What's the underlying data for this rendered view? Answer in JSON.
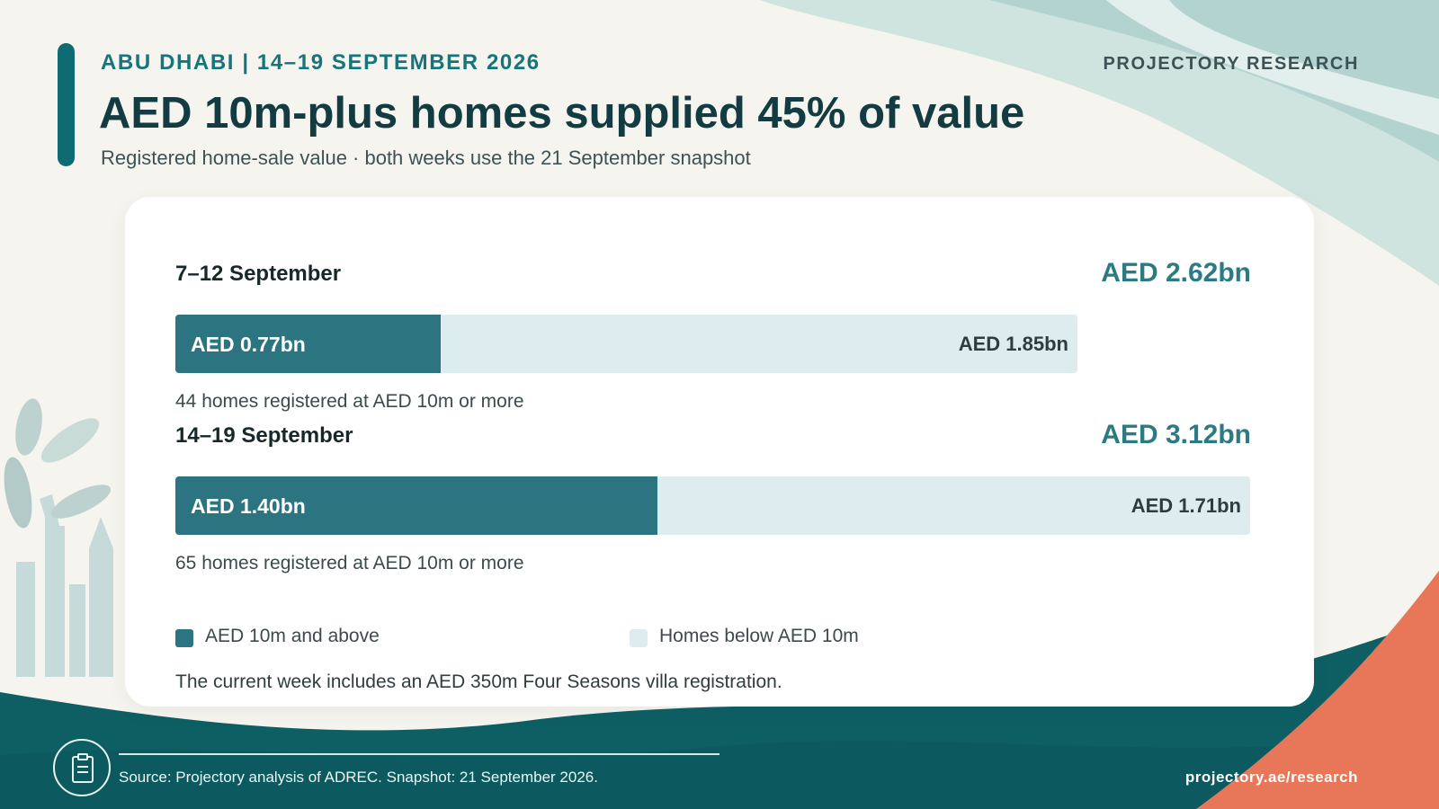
{
  "header": {
    "kicker": "ABU DHABI | 14–19 SEPTEMBER 2026",
    "brand": "PROJECTORY RESEARCH",
    "title": "AED 10m-plus homes supplied 45% of value",
    "subtitle": "Registered home-sale value · both weeks use the 21 September snapshot"
  },
  "colors": {
    "above": "#2b7480",
    "below": "#dcecef",
    "accent": "#0f6b72",
    "coral": "#e8775a"
  },
  "chart_data": {
    "type": "bar",
    "orientation": "horizontal",
    "stacked": true,
    "unit": "AED bn",
    "categories": [
      "7–12 September",
      "14–19 September"
    ],
    "totals": [
      2.62,
      3.12
    ],
    "total_labels": [
      "AED 2.62bn",
      "AED 3.12bn"
    ],
    "series": [
      {
        "name": "AED 10m and above",
        "values": [
          0.77,
          1.4
        ],
        "labels": [
          "AED 0.77bn",
          "AED 1.40bn"
        ]
      },
      {
        "name": "Homes below AED 10m",
        "values": [
          1.85,
          1.71
        ],
        "labels": [
          "AED 1.85bn",
          "AED 1.71bn"
        ]
      }
    ],
    "count_notes": [
      "44 homes registered at AED 10m or more",
      "65 homes registered at AED 10m or more"
    ],
    "xlim": [
      0,
      3.12
    ],
    "grid": false,
    "legend": "bottom"
  },
  "note": "The current week includes an AED 350m Four Seasons villa registration.",
  "footer": {
    "icon": "clipboard-icon",
    "source": "Source: Projectory analysis of ADREC. Snapshot: 21 September 2026.",
    "url": "projectory.ae/research"
  }
}
